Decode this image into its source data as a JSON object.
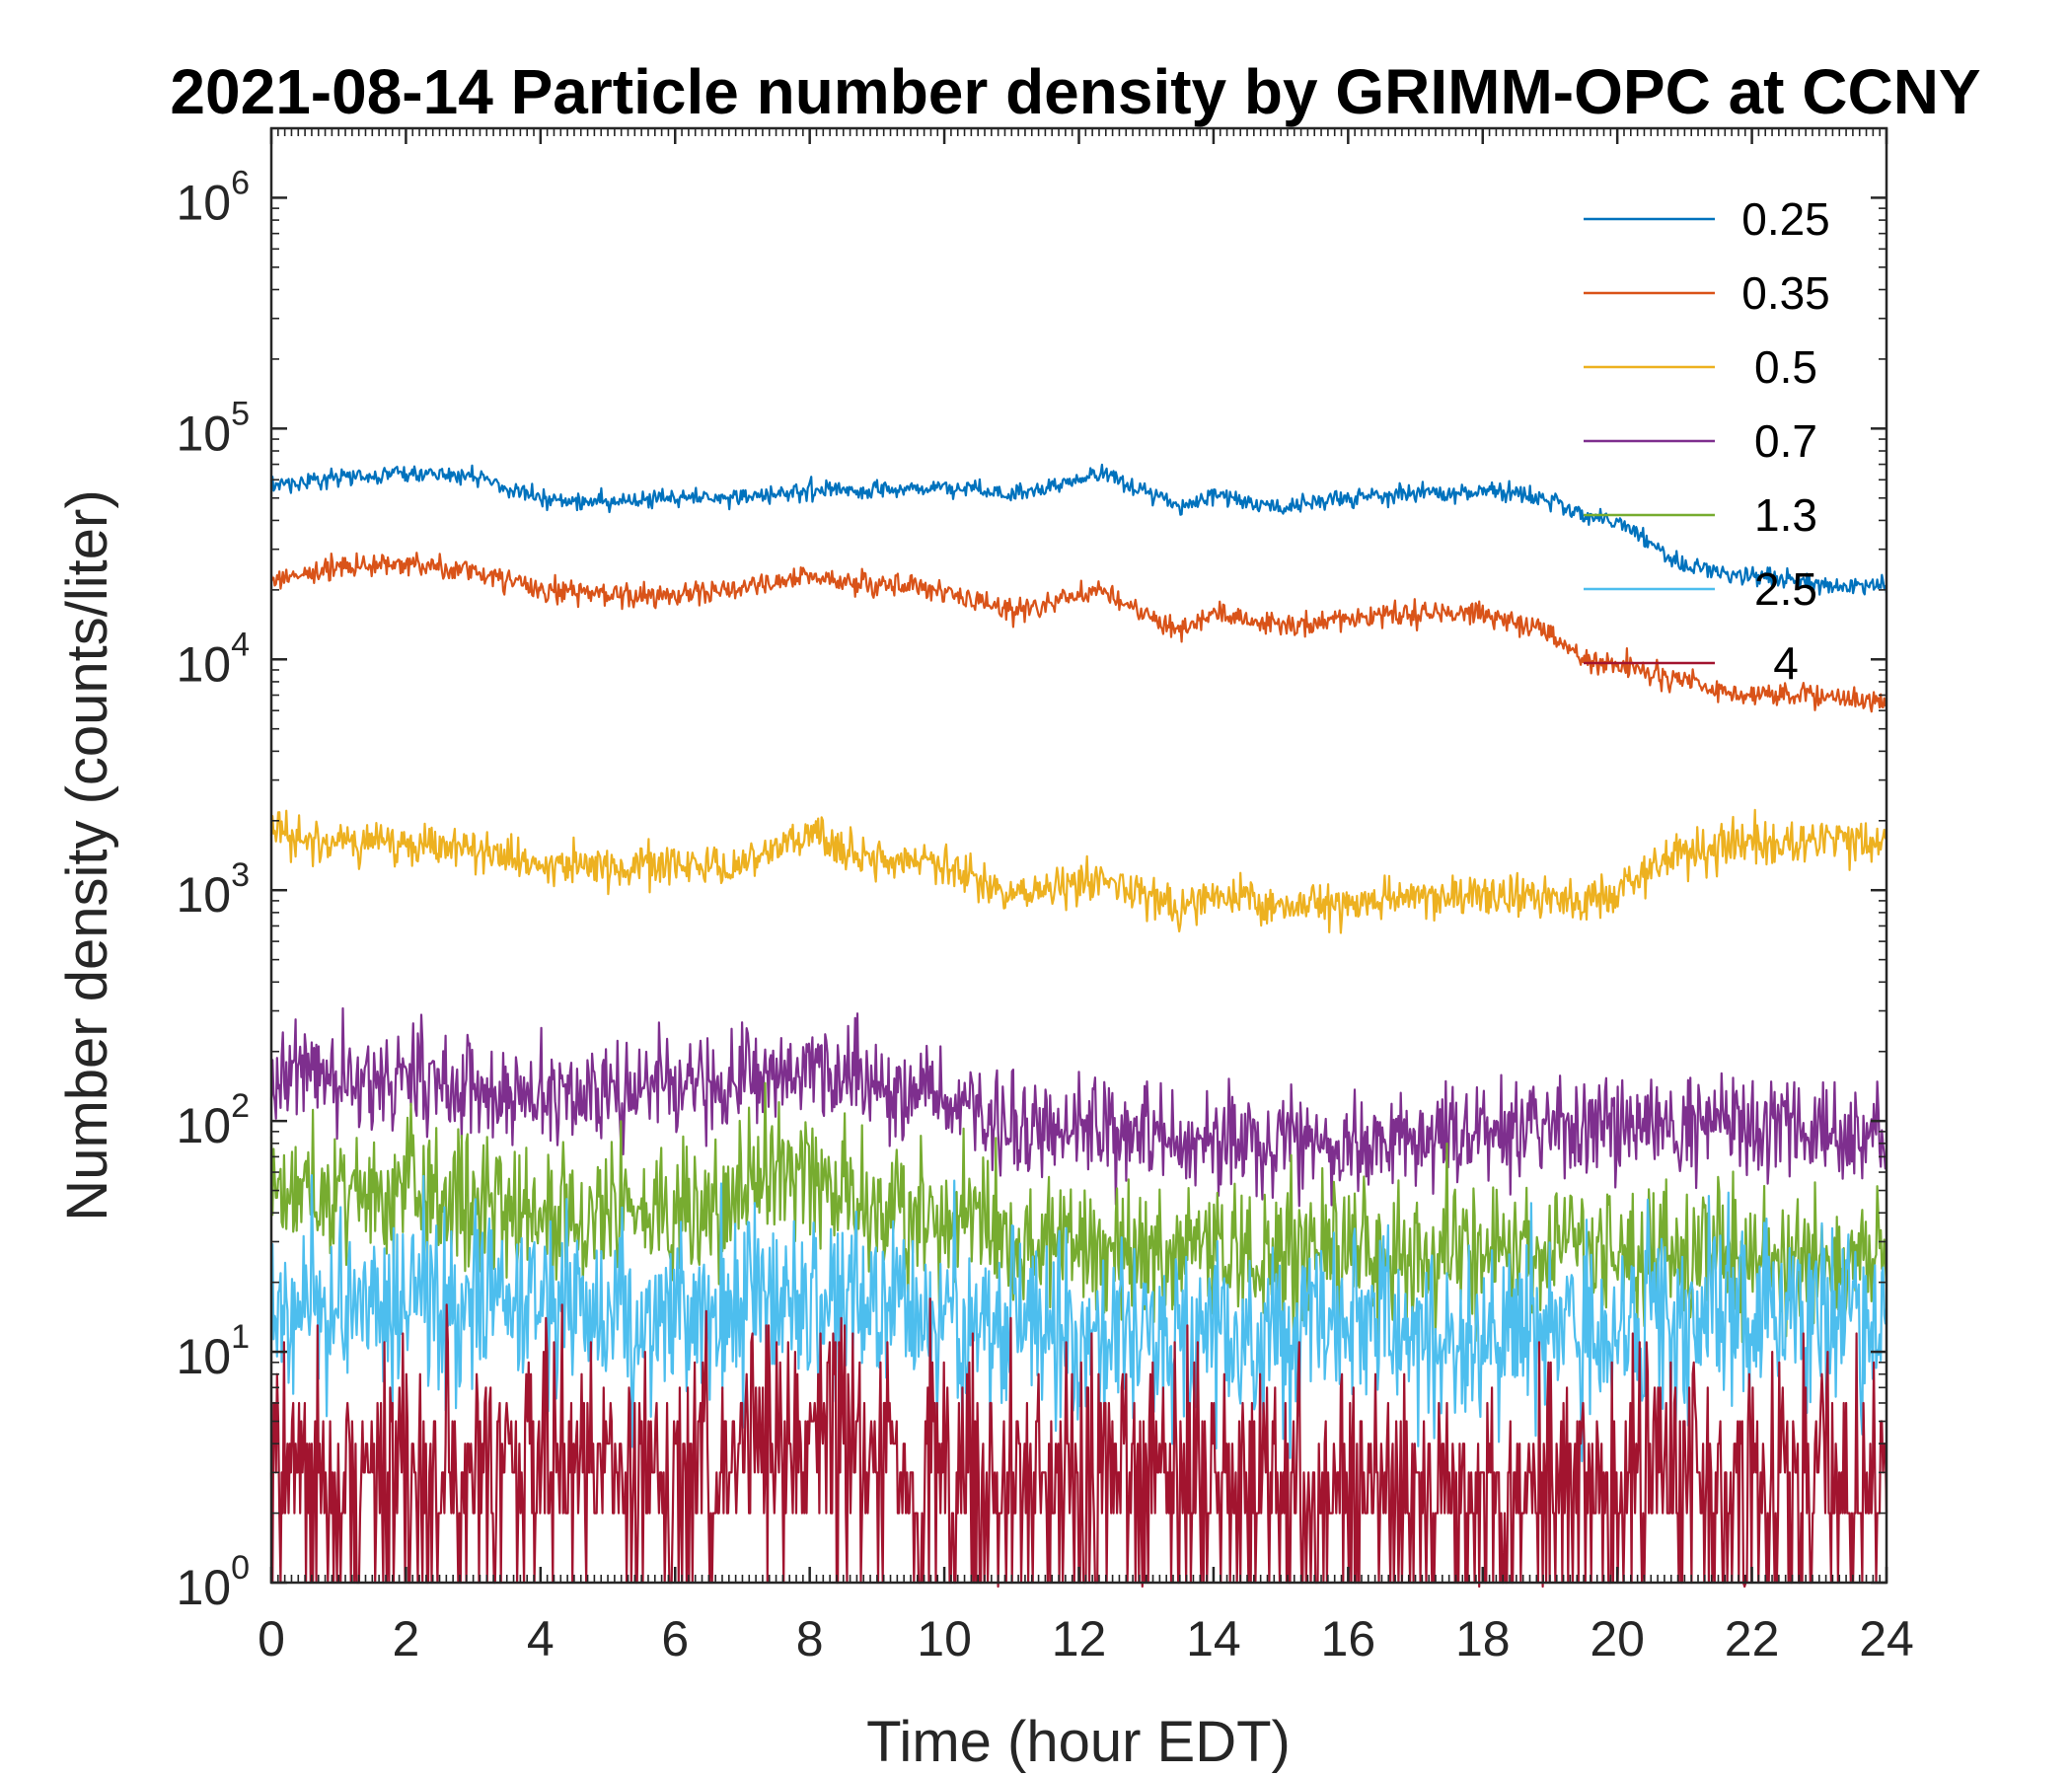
{
  "chart_data": {
    "type": "line",
    "title": "2021-08-14 Particle number density by GRIMM-OPC at CCNY",
    "xlabel": "Time (hour EDT)",
    "ylabel": "Number density (counts/liter)",
    "xlim": [
      0,
      24
    ],
    "ylim": [
      1,
      2000000
    ],
    "yscale": "log",
    "xticks": [
      "0",
      "2",
      "4",
      "6",
      "8",
      "10",
      "12",
      "14",
      "16",
      "18",
      "20",
      "22",
      "24"
    ],
    "yticks": [
      {
        "base": "10",
        "exp": "0"
      },
      {
        "base": "10",
        "exp": "1"
      },
      {
        "base": "10",
        "exp": "2"
      },
      {
        "base": "10",
        "exp": "3"
      },
      {
        "base": "10",
        "exp": "4"
      },
      {
        "base": "10",
        "exp": "5"
      },
      {
        "base": "10",
        "exp": "6"
      }
    ],
    "legend_position": "top-right",
    "series": [
      {
        "name": "0.25",
        "color": "#0072BD",
        "noise": 0.04,
        "x": [
          0,
          1,
          2,
          3,
          4,
          5,
          6,
          7,
          8,
          9,
          10,
          11,
          12,
          12.3,
          13,
          13.5,
          14,
          15,
          16,
          17,
          18,
          19,
          19.5,
          20,
          20.5,
          21,
          21.5,
          22,
          23,
          24
        ],
        "values": [
          56000,
          62000,
          64000,
          62000,
          50000,
          48000,
          50000,
          50000,
          54000,
          54000,
          56000,
          52000,
          60000,
          64000,
          54000,
          45000,
          52000,
          46000,
          50000,
          52000,
          54000,
          50000,
          42000,
          40000,
          32000,
          25000,
          24000,
          23000,
          21000,
          21000
        ]
      },
      {
        "name": "0.35",
        "color": "#D95319",
        "noise": 0.05,
        "x": [
          0,
          1,
          2,
          3,
          4,
          5,
          6,
          7,
          8,
          9,
          10,
          10.8,
          11,
          12,
          12.3,
          13,
          13.5,
          14,
          15,
          16,
          17,
          18,
          19,
          19.5,
          20,
          21,
          22,
          23,
          24
        ],
        "values": [
          22000,
          25000,
          26000,
          24000,
          20000,
          19000,
          19000,
          20000,
          23000,
          21000,
          20000,
          17000,
          16000,
          19000,
          20000,
          16000,
          13000,
          16000,
          14000,
          15000,
          16000,
          16000,
          13000,
          10000,
          9500,
          8000,
          7000,
          7000,
          6500
        ]
      },
      {
        "name": "0.5",
        "color": "#EDB120",
        "noise": 0.09,
        "x": [
          0,
          1,
          2,
          3,
          4,
          5,
          6,
          7,
          8,
          8.5,
          9,
          10,
          10.8,
          11,
          12,
          12.3,
          13,
          13.5,
          14,
          15,
          16,
          17,
          18,
          19,
          19.5,
          20,
          21,
          22,
          23,
          24
        ],
        "values": [
          1800,
          1600,
          1600,
          1500,
          1300,
          1250,
          1300,
          1300,
          1800,
          1500,
          1400,
          1300,
          1000,
          950,
          1100,
          1100,
          950,
          800,
          950,
          850,
          850,
          950,
          950,
          950,
          850,
          1000,
          1500,
          1600,
          1650,
          1650
        ]
      },
      {
        "name": "0.7",
        "color": "#7E2F8E",
        "noise": 0.22,
        "x": [
          0,
          2,
          4,
          6,
          8,
          9,
          10,
          11,
          12,
          14,
          16,
          18,
          20,
          22,
          24
        ],
        "values": [
          160,
          150,
          130,
          140,
          180,
          140,
          130,
          90,
          95,
          85,
          80,
          90,
          95,
          95,
          90
        ]
      },
      {
        "name": "1.3",
        "color": "#77AC30",
        "noise": 0.3,
        "x": [
          0,
          2,
          4,
          6,
          8,
          9,
          10,
          11,
          12,
          14,
          16,
          18,
          20,
          22,
          24
        ],
        "values": [
          50,
          50,
          40,
          40,
          55,
          40,
          38,
          30,
          30,
          28,
          25,
          28,
          28,
          25,
          25
        ]
      },
      {
        "name": "2.5",
        "color": "#4DBEEE",
        "noise": 0.4,
        "x": [
          0,
          2,
          4,
          6,
          8,
          10,
          12,
          14,
          16,
          18,
          20,
          22,
          24
        ],
        "values": [
          18,
          17,
          15,
          14,
          16,
          14,
          12,
          12,
          12,
          12,
          13,
          14,
          14
        ]
      },
      {
        "name": "4",
        "color": "#A2142F",
        "noise": 0.55,
        "x": [
          0,
          2,
          4,
          6,
          8,
          10,
          12,
          14,
          16,
          18,
          20,
          22,
          24
        ],
        "values": [
          3,
          3,
          3,
          2.8,
          4,
          3,
          2.5,
          2.5,
          2.5,
          2.5,
          2.5,
          2.5,
          2.8
        ]
      }
    ]
  }
}
